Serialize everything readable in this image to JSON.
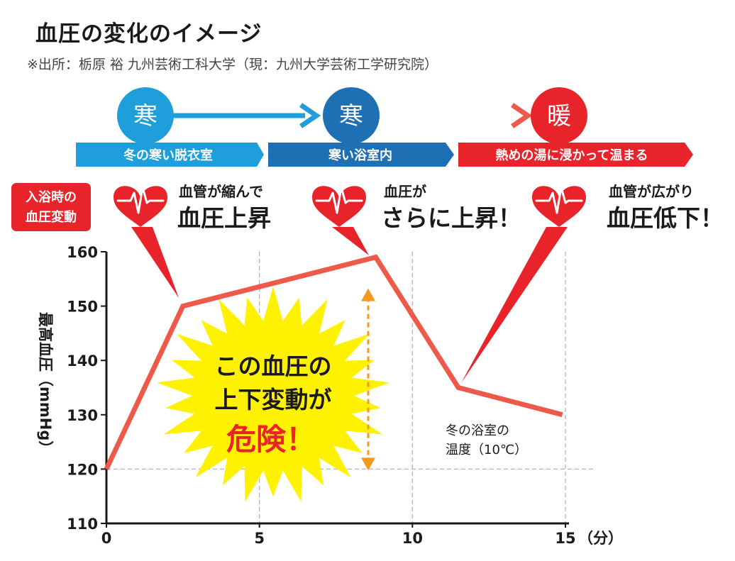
{
  "title": "血圧の変化のイメージ",
  "source": "※出所：栃原 裕 九州芸術工科大学（現：九州大学芸術工学研究院）",
  "stages": [
    {
      "symbol": "寒",
      "label": "冬の寒い脱衣室",
      "color": "#1e9fdc"
    },
    {
      "symbol": "寒",
      "label": "寒い浴室内",
      "color": "#1f6fb5"
    },
    {
      "symbol": "暖",
      "label": "熱めの湯に浸かって温まる",
      "color": "#e8242a"
    }
  ],
  "side_label": [
    "入浴時の",
    "血圧変動"
  ],
  "annotations": [
    {
      "line1": "血管が縮んで",
      "line2": "血圧上昇"
    },
    {
      "line1": "血圧が",
      "line2": "さらに上昇！"
    },
    {
      "line1": "血管が広がり",
      "line2": "血圧低下！"
    }
  ],
  "danger": {
    "line1": "この血圧の",
    "line2": "上下変動が",
    "line3": "危険！"
  },
  "note": {
    "line1": "冬の浴室の",
    "line2": "温度（10℃）"
  },
  "chart_data": {
    "type": "line",
    "title": "血圧の変化のイメージ",
    "xlabel": "（分）",
    "ylabel": "最高血圧（mmHg）",
    "x": [
      0,
      2.5,
      8.8,
      11.5,
      14.9
    ],
    "y": [
      120,
      150,
      159,
      135,
      130
    ],
    "xlim": [
      0,
      15
    ],
    "ylim": [
      110,
      160
    ],
    "xticks": [
      0,
      5,
      10,
      15
    ],
    "yticks": [
      110,
      120,
      130,
      140,
      150,
      160
    ],
    "line_color": "#ee5a4a",
    "reference_line_y": 120,
    "variation_arrow": [
      120,
      153
    ]
  }
}
